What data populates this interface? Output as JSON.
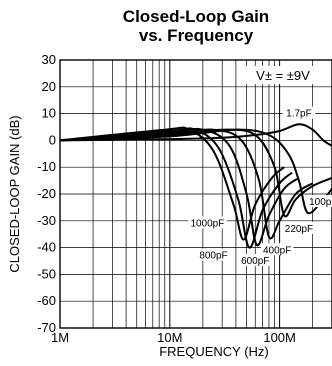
{
  "chart_data": {
    "type": "line",
    "title_line1": "Closed-Loop Gain",
    "title_line2": "vs. Frequency",
    "xlabel": "FREQUENCY (Hz)",
    "ylabel": "CLOSED-LOOP GAIN (dB)",
    "xscale": "log",
    "xlim": [
      1000000,
      300000000
    ],
    "ylim": [
      -70,
      30
    ],
    "x_ticks": [
      {
        "value": 1000000,
        "label": "1M"
      },
      {
        "value": 10000000,
        "label": "10M"
      },
      {
        "value": 100000000,
        "label": "100M"
      }
    ],
    "y_ticks": [
      {
        "value": 30,
        "label": "30"
      },
      {
        "value": 20,
        "label": "20"
      },
      {
        "value": 10,
        "label": "10"
      },
      {
        "value": 0,
        "label": "0"
      },
      {
        "value": -10,
        "label": "-10"
      },
      {
        "value": -20,
        "label": "-20"
      },
      {
        "value": -30,
        "label": "-30"
      },
      {
        "value": -40,
        "label": "-40"
      },
      {
        "value": -50,
        "label": "-50"
      },
      {
        "value": -60,
        "label": "-60"
      },
      {
        "value": -70,
        "label": "-70"
      }
    ],
    "grid": true,
    "condition": "V± = ±9V",
    "series": [
      {
        "name": "1.7pF",
        "x": [
          1000000,
          10000000,
          30000000,
          60000000,
          100000000,
          150000000,
          200000000,
          250000000,
          300000000
        ],
        "y": [
          0,
          0.5,
          1,
          2,
          3.5,
          6,
          4,
          0,
          -2
        ]
      },
      {
        "name": "100pF",
        "x": [
          1000000,
          10000000,
          40000000,
          80000000,
          120000000,
          150000000,
          180000000,
          250000000,
          300000000
        ],
        "y": [
          0,
          1.5,
          4,
          2,
          -5,
          -15,
          -27,
          -22,
          -18
        ]
      },
      {
        "name": "220pF",
        "x": [
          1000000,
          10000000,
          30000000,
          60000000,
          90000000,
          110000000,
          140000000,
          200000000,
          300000000
        ],
        "y": [
          0,
          2,
          4,
          2,
          -10,
          -28,
          -22,
          -17,
          -14
        ]
      },
      {
        "name": "400pF",
        "x": [
          1000000,
          10000000,
          25000000,
          45000000,
          65000000,
          80000000,
          100000000,
          140000000,
          200000000
        ],
        "y": [
          0,
          2.5,
          4,
          0,
          -15,
          -36,
          -30,
          -20,
          -16
        ]
      },
      {
        "name": "600pF",
        "x": [
          1000000,
          10000000,
          20000000,
          35000000,
          50000000,
          62000000,
          80000000,
          110000000,
          150000000
        ],
        "y": [
          0,
          3,
          4,
          -2,
          -20,
          -39,
          -28,
          -18,
          -14
        ]
      },
      {
        "name": "800pF",
        "x": [
          1000000,
          10000000,
          17000000,
          28000000,
          42000000,
          53000000,
          70000000,
          100000000,
          130000000
        ],
        "y": [
          0,
          3.5,
          4,
          -3,
          -22,
          -40,
          -26,
          -16,
          -12
        ]
      },
      {
        "name": "1000pF",
        "x": [
          1000000,
          9000000,
          15000000,
          25000000,
          38000000,
          47000000,
          60000000,
          85000000,
          110000000
        ],
        "y": [
          0,
          4,
          4,
          -4,
          -24,
          -37,
          -24,
          -14,
          -10
        ]
      }
    ],
    "annotations": [
      {
        "text": "1.7pF",
        "x": 150000000,
        "y": 10
      },
      {
        "text": "100pF",
        "x": 250000000,
        "y": -23
      },
      {
        "text": "220pF",
        "x": 150000000,
        "y": -33
      },
      {
        "text": "400pF",
        "x": 95000000,
        "y": -41
      },
      {
        "text": "600pF",
        "x": 60000000,
        "y": -45
      },
      {
        "text": "800pF",
        "x": 25000000,
        "y": -43
      },
      {
        "text": "1000pF",
        "x": 22000000,
        "y": -31
      }
    ]
  }
}
